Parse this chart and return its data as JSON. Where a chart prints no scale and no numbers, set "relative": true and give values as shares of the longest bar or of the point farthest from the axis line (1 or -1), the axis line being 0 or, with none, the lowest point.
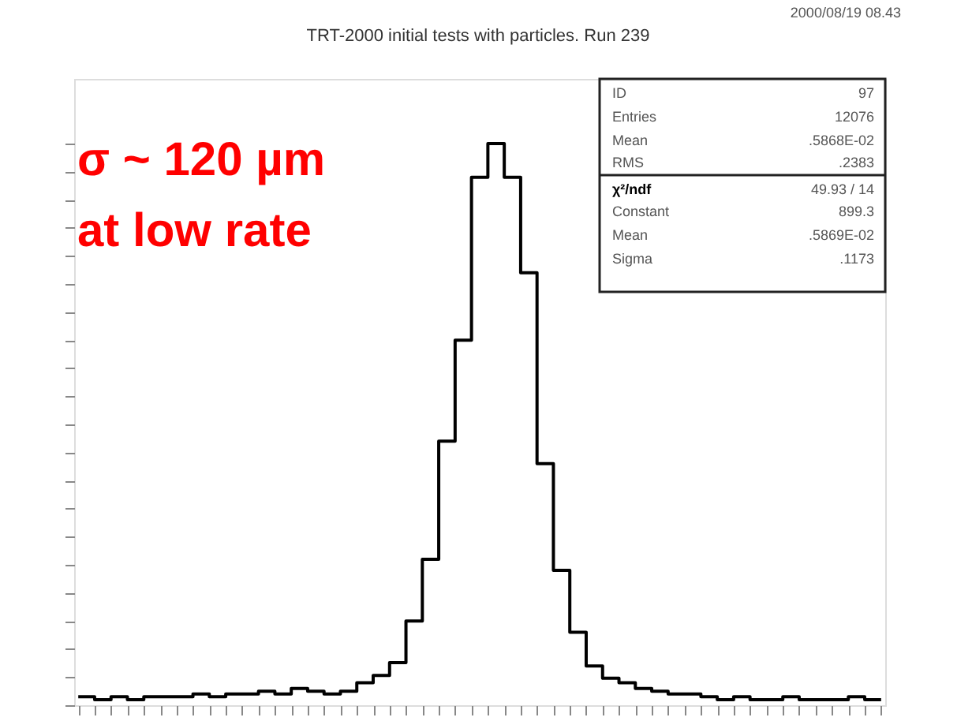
{
  "chart_data": {
    "type": "step",
    "title": "TRT-2000 initial tests with particles.  Run   239",
    "relative": true,
    "categories": [
      null,
      null,
      null,
      null,
      null,
      null,
      null,
      null,
      null,
      null,
      null,
      null,
      null,
      null,
      null,
      null,
      null,
      null,
      null,
      null,
      null,
      null,
      null,
      null,
      null,
      null,
      null,
      null,
      null,
      null,
      null,
      null,
      null,
      null,
      null,
      null,
      null,
      null,
      null,
      null,
      null,
      null,
      null,
      null,
      null,
      null,
      null,
      null,
      null,
      null
    ],
    "series": [
      {
        "color": "#000000",
        "values": [
          0.015,
          0.01,
          0.015,
          0.01,
          0.015,
          0.015,
          0.015,
          0.02,
          0.015,
          0.02,
          0.02,
          0.025,
          0.02,
          0.03,
          0.025,
          0.02,
          0.025,
          0.04,
          0.053,
          0.076,
          0.15,
          0.26,
          0.47,
          0.65,
          0.94,
          1.0,
          0.94,
          0.77,
          0.43,
          0.24,
          0.13,
          0.07,
          0.048,
          0.04,
          0.03,
          0.025,
          0.02,
          0.02,
          0.015,
          0.01,
          0.015,
          0.01,
          0.01,
          0.015,
          0.01,
          0.01,
          0.01,
          0.015,
          0.01,
          0.01
        ]
      }
    ],
    "annotations": [
      "2000/08/19   08.43",
      "σ ~ 120 µm",
      "at low rate",
      "ID",
      "97",
      "Entries",
      "12076",
      "Mean",
      ".5868E-02",
      "RMS",
      ".2383",
      "χ²/ndf",
      "49.93   /   14",
      "Constant",
      "899.3",
      "Mean",
      ".5869E-02",
      "Sigma",
      ".1173"
    ]
  }
}
